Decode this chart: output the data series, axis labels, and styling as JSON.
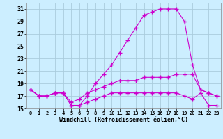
{
  "xlabel": "Windchill (Refroidissement éolien,°C)",
  "background_color": "#cceeff",
  "grid_color": "#aaccdd",
  "line_color": "#cc00cc",
  "xlim": [
    -0.5,
    23.5
  ],
  "ylim": [
    15,
    32
  ],
  "yticks": [
    15,
    17,
    19,
    21,
    23,
    25,
    27,
    29,
    31
  ],
  "xticks": [
    0,
    1,
    2,
    3,
    4,
    5,
    6,
    7,
    8,
    9,
    10,
    11,
    12,
    13,
    14,
    15,
    16,
    17,
    18,
    19,
    20,
    21,
    22,
    23
  ],
  "xtick_labels": [
    "0",
    "1",
    "2",
    "3",
    "4",
    "5",
    "6",
    "7",
    "8",
    "9",
    "10",
    "11",
    "12",
    "13",
    "14",
    "15",
    "16",
    "17",
    "18",
    "19",
    "20",
    "21",
    "22",
    "23"
  ],
  "line1_y": [
    18.0,
    17.0,
    17.0,
    17.5,
    17.5,
    15.5,
    15.5,
    17.0,
    19.0,
    20.5,
    22.0,
    24.0,
    26.0,
    28.0,
    30.0,
    30.5,
    31.0,
    31.0,
    31.0,
    29.0,
    22.0,
    18.0,
    17.5,
    17.0
  ],
  "line2_y": [
    18.0,
    17.0,
    17.0,
    17.5,
    17.5,
    16.0,
    16.5,
    17.5,
    18.0,
    18.5,
    19.0,
    19.5,
    19.5,
    19.5,
    20.0,
    20.0,
    20.0,
    20.0,
    20.5,
    20.5,
    20.5,
    18.0,
    17.5,
    17.0
  ],
  "line3_y": [
    18.0,
    17.0,
    17.0,
    17.5,
    17.5,
    15.5,
    15.5,
    16.0,
    16.5,
    17.0,
    17.5,
    17.5,
    17.5,
    17.5,
    17.5,
    17.5,
    17.5,
    17.5,
    17.5,
    17.0,
    16.5,
    17.5,
    15.5,
    15.5
  ],
  "xlabel_fontsize": 6.0,
  "ytick_fontsize": 6.0,
  "xtick_fontsize": 5.0
}
